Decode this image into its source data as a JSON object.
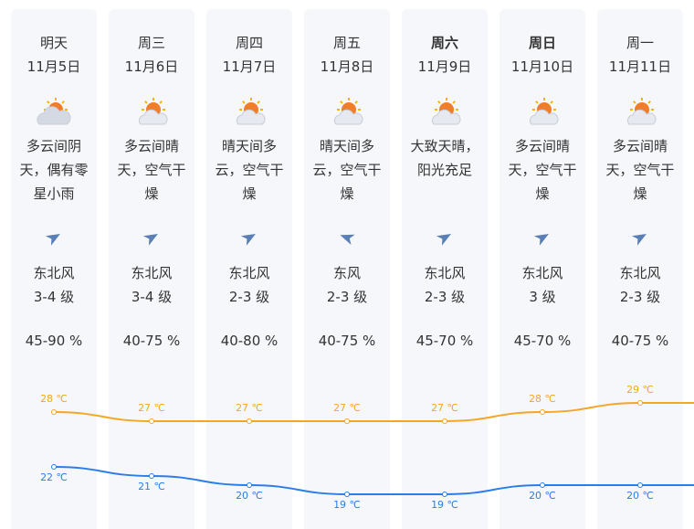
{
  "days": [
    {
      "name": "明天",
      "date": "11月5日",
      "weather": "多云间阴天，偶有零星小雨",
      "wind_dir": "东北风",
      "wind_level": "3-4 级",
      "humidity": "45-90 %"
    },
    {
      "name": "周三",
      "date": "11月6日",
      "weather": "多云间晴天，空气干燥",
      "wind_dir": "东北风",
      "wind_level": "3-4 级",
      "humidity": "40-75 %"
    },
    {
      "name": "周四",
      "date": "11月7日",
      "weather": "晴天间多云，空气干燥",
      "wind_dir": "东北风",
      "wind_level": "2-3 级",
      "humidity": "40-80 %"
    },
    {
      "name": "周五",
      "date": "11月8日",
      "weather": "晴天间多云，空气干燥",
      "wind_dir": "东风",
      "wind_level": "2-3 级",
      "humidity": "40-75 %"
    },
    {
      "name": "周六",
      "date": "11月9日",
      "weather": "大致天晴，阳光充足",
      "wind_dir": "东北风",
      "wind_level": "2-3 级",
      "humidity": "45-70 %"
    },
    {
      "name": "周日",
      "date": "11月10日",
      "weather": "多云间晴天，空气干燥",
      "wind_dir": "东北风",
      "wind_level": "3 级",
      "humidity": "45-70 %"
    },
    {
      "name": "周一",
      "date": "11月11日",
      "weather": "多云间晴天，空气干燥",
      "wind_dir": "东北风",
      "wind_level": "2-3 级",
      "humidity": "40-75 %"
    }
  ],
  "chart_data": {
    "type": "line",
    "series": [
      {
        "color": "#f5a623",
        "values": [
          28,
          27,
          27,
          27,
          27,
          28,
          29
        ],
        "value_labels": [
          "28 ℃",
          "27 ℃",
          "27 ℃",
          "27 ℃",
          "27 ℃",
          "28 ℃",
          "29 ℃"
        ]
      },
      {
        "color": "#2b7de9",
        "values": [
          22,
          21,
          20,
          19,
          19,
          20,
          20
        ],
        "value_labels": [
          "22 ℃",
          "21 ℃",
          "20 ℃",
          "19 ℃",
          "19 ℃",
          "20 ℃",
          "20 ℃"
        ]
      }
    ]
  }
}
